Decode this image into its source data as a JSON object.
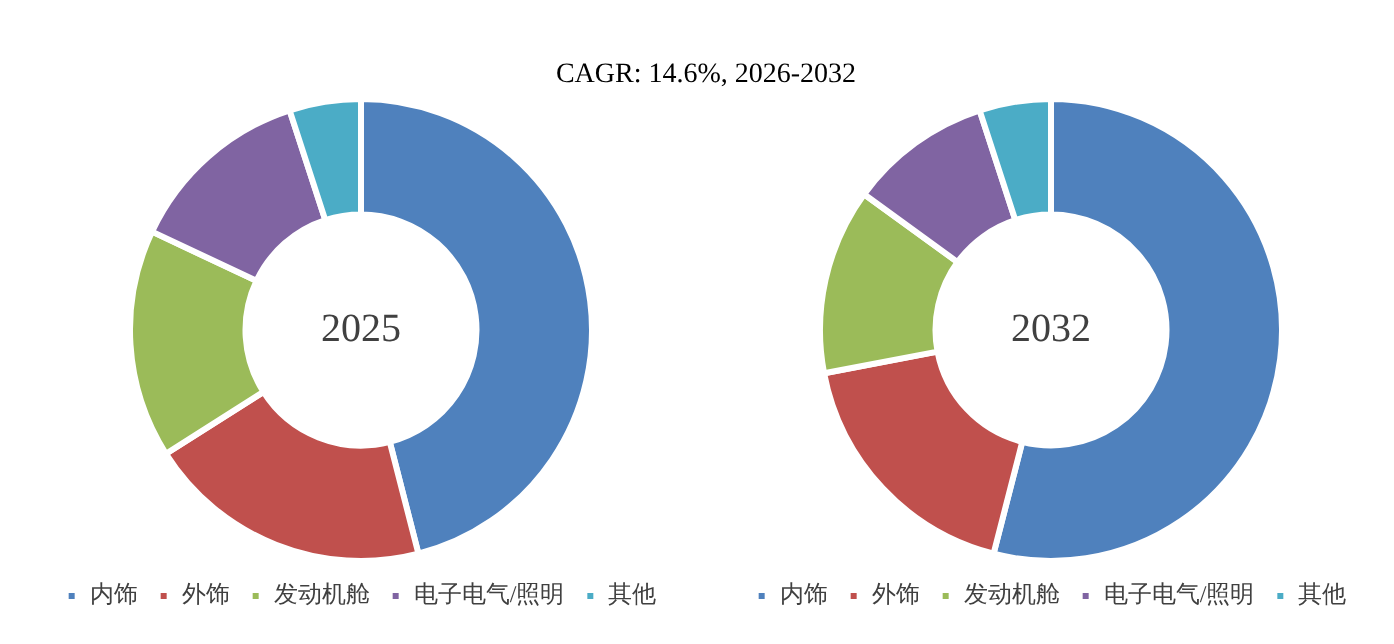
{
  "chart_data": [
    {
      "type": "donut",
      "title": "CAGR:  14.6%, 2026-2032",
      "categories": [
        "内饰",
        "外饰",
        "发动机舱",
        "电子电气/照明",
        "其他"
      ],
      "values": [
        46,
        20,
        16,
        13,
        5
      ],
      "colors": [
        "#4f81bd",
        "#c0504d",
        "#9bbb59",
        "#8064a2",
        "#4bacc6"
      ],
      "annotations": [
        "2025"
      ],
      "legend": "bottom"
    },
    {
      "type": "donut",
      "categories": [
        "内饰",
        "外饰",
        "发动机舱",
        "电子电气/照明",
        "其他"
      ],
      "values": [
        54,
        18,
        13,
        10,
        5
      ],
      "colors": [
        "#4f81bd",
        "#c0504d",
        "#9bbb59",
        "#8064a2",
        "#4bacc6"
      ],
      "annotations": [
        "2032"
      ],
      "legend": "bottom"
    }
  ]
}
